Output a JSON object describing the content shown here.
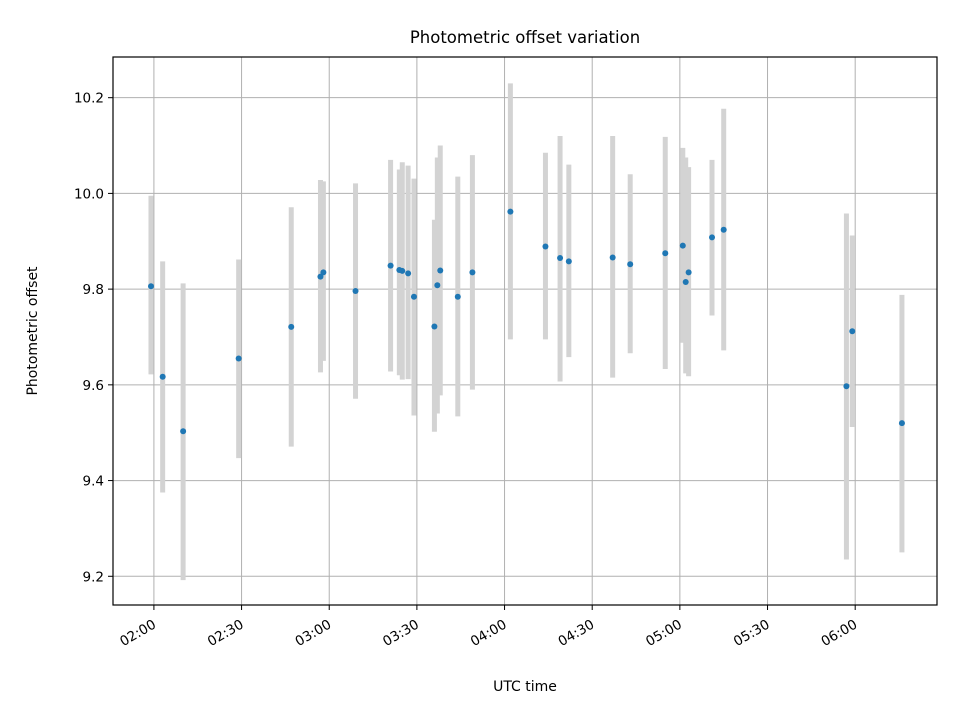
{
  "chart_data": {
    "type": "scatter",
    "title": "Photometric offset variation",
    "xlabel": "UTC time",
    "ylabel": "Photometric offset",
    "x_range": [
      "01:46",
      "06:28"
    ],
    "ylim": [
      9.14,
      10.285
    ],
    "grid": true,
    "error_bars": true,
    "x_ticks": [
      "02:00",
      "02:30",
      "03:00",
      "03:30",
      "04:00",
      "04:30",
      "05:00",
      "05:30",
      "06:00"
    ],
    "y_ticks": [
      9.2,
      9.4,
      9.6,
      9.8,
      10.0,
      10.2
    ],
    "y_tick_labels": [
      "9.2",
      "9.4",
      "9.6",
      "9.8",
      "10.0",
      "10.2"
    ],
    "points": [
      {
        "x": "01:59",
        "y": 9.806,
        "low": 9.622,
        "high": 9.995
      },
      {
        "x": "02:03",
        "y": 9.617,
        "low": 9.375,
        "high": 9.858
      },
      {
        "x": "02:10",
        "y": 9.503,
        "low": 9.192,
        "high": 9.812
      },
      {
        "x": "02:29",
        "y": 9.655,
        "low": 9.447,
        "high": 9.862
      },
      {
        "x": "02:47",
        "y": 9.721,
        "low": 9.471,
        "high": 9.971
      },
      {
        "x": "02:57",
        "y": 9.826,
        "low": 9.626,
        "high": 10.028
      },
      {
        "x": "02:58",
        "y": 9.835,
        "low": 9.65,
        "high": 10.025
      },
      {
        "x": "03:09",
        "y": 9.796,
        "low": 9.571,
        "high": 10.021
      },
      {
        "x": "03:21",
        "y": 9.849,
        "low": 9.628,
        "high": 10.07
      },
      {
        "x": "03:24",
        "y": 9.84,
        "low": 9.62,
        "high": 10.05
      },
      {
        "x": "03:25",
        "y": 9.838,
        "low": 9.611,
        "high": 10.065
      },
      {
        "x": "03:27",
        "y": 9.833,
        "low": 9.612,
        "high": 10.058
      },
      {
        "x": "03:29",
        "y": 9.784,
        "low": 9.536,
        "high": 10.031
      },
      {
        "x": "03:36",
        "y": 9.722,
        "low": 9.502,
        "high": 9.945
      },
      {
        "x": "03:37",
        "y": 9.808,
        "low": 9.54,
        "high": 10.075
      },
      {
        "x": "03:38",
        "y": 9.839,
        "low": 9.578,
        "high": 10.1
      },
      {
        "x": "03:44",
        "y": 9.784,
        "low": 9.534,
        "high": 10.035
      },
      {
        "x": "03:49",
        "y": 9.835,
        "low": 9.59,
        "high": 10.08
      },
      {
        "x": "04:02",
        "y": 9.962,
        "low": 9.695,
        "high": 10.23
      },
      {
        "x": "04:14",
        "y": 9.889,
        "low": 9.695,
        "high": 10.085
      },
      {
        "x": "04:19",
        "y": 9.865,
        "low": 9.607,
        "high": 10.12
      },
      {
        "x": "04:22",
        "y": 9.858,
        "low": 9.658,
        "high": 10.06
      },
      {
        "x": "04:37",
        "y": 9.866,
        "low": 9.615,
        "high": 10.12
      },
      {
        "x": "04:43",
        "y": 9.852,
        "low": 9.666,
        "high": 10.04
      },
      {
        "x": "04:55",
        "y": 9.875,
        "low": 9.633,
        "high": 10.118
      },
      {
        "x": "05:01",
        "y": 9.891,
        "low": 9.688,
        "high": 10.095
      },
      {
        "x": "05:02",
        "y": 9.815,
        "low": 9.624,
        "high": 10.075
      },
      {
        "x": "05:03",
        "y": 9.835,
        "low": 9.618,
        "high": 10.055
      },
      {
        "x": "05:11",
        "y": 9.908,
        "low": 9.745,
        "high": 10.07
      },
      {
        "x": "05:15",
        "y": 9.924,
        "low": 9.672,
        "high": 10.177
      },
      {
        "x": "05:57",
        "y": 9.597,
        "low": 9.235,
        "high": 9.958
      },
      {
        "x": "05:59",
        "y": 9.712,
        "low": 9.512,
        "high": 9.912
      },
      {
        "x": "06:16",
        "y": 9.52,
        "low": 9.25,
        "high": 9.788
      }
    ]
  },
  "colors": {
    "marker": "#1f77b4",
    "error_bar": "#d3d3d3",
    "grid": "#b0b0b0",
    "axes": "#000000",
    "background": "#ffffff"
  }
}
